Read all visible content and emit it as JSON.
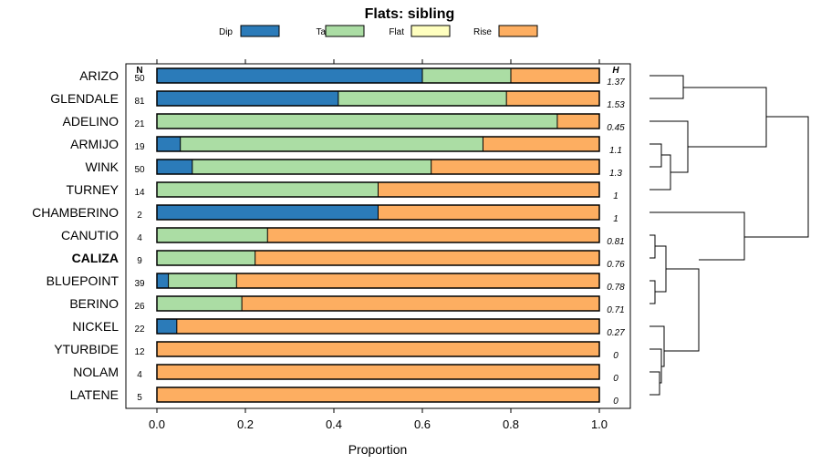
{
  "chart_data": {
    "type": "bar",
    "stacked": true,
    "orientation": "horizontal",
    "title": "Flats: sibling",
    "xlabel": "Proportion",
    "xlim": [
      0,
      1
    ],
    "x_ticks": [
      "0.0",
      "0.2",
      "0.4",
      "0.6",
      "0.8",
      "1.0"
    ],
    "legend": [
      {
        "name": "Dip",
        "color": "#2b7bb9"
      },
      {
        "name": "Talf",
        "color": "#abdda4"
      },
      {
        "name": "Flat",
        "color": "#ffffbf"
      },
      {
        "name": "Rise",
        "color": "#fdae61"
      }
    ],
    "n_header": "N",
    "h_header": "H",
    "highlight": "CALIZA",
    "rows": [
      {
        "name": "ARIZO",
        "n": "50",
        "h": "1.37",
        "values": [
          0.6,
          0.2,
          0,
          0.2
        ]
      },
      {
        "name": "GLENDALE",
        "n": "81",
        "h": "1.53",
        "values": [
          0.41,
          0.38,
          0,
          0.21
        ]
      },
      {
        "name": "ADELINO",
        "n": "21",
        "h": "0.45",
        "values": [
          0,
          0.905,
          0,
          0.095
        ]
      },
      {
        "name": "ARMIJO",
        "n": "19",
        "h": "1.1",
        "values": [
          0.053,
          0.684,
          0,
          0.263
        ]
      },
      {
        "name": "WINK",
        "n": "50",
        "h": "1.3",
        "values": [
          0.08,
          0.54,
          0,
          0.38
        ]
      },
      {
        "name": "TURNEY",
        "n": "14",
        "h": "1",
        "values": [
          0,
          0.5,
          0,
          0.5
        ]
      },
      {
        "name": "CHAMBERINO",
        "n": "2",
        "h": "1",
        "values": [
          0.5,
          0,
          0,
          0.5
        ]
      },
      {
        "name": "CANUTIO",
        "n": "4",
        "h": "0.81",
        "values": [
          0,
          0.25,
          0,
          0.75
        ]
      },
      {
        "name": "CALIZA",
        "n": "9",
        "h": "0.76",
        "values": [
          0,
          0.222,
          0,
          0.778
        ]
      },
      {
        "name": "BLUEPOINT",
        "n": "39",
        "h": "0.78",
        "values": [
          0.026,
          0.154,
          0,
          0.82
        ]
      },
      {
        "name": "BERINO",
        "n": "26",
        "h": "0.71",
        "values": [
          0,
          0.192,
          0,
          0.808
        ]
      },
      {
        "name": "NICKEL",
        "n": "22",
        "h": "0.27",
        "values": [
          0.045,
          0,
          0,
          0.955
        ]
      },
      {
        "name": "YTURBIDE",
        "n": "12",
        "h": "0",
        "values": [
          0,
          0,
          0,
          1
        ]
      },
      {
        "name": "NOLAM",
        "n": "4",
        "h": "0",
        "values": [
          0,
          0,
          0,
          1
        ]
      },
      {
        "name": "LATENE",
        "n": "5",
        "h": "0",
        "values": [
          0,
          0,
          0,
          1
        ]
      }
    ]
  }
}
